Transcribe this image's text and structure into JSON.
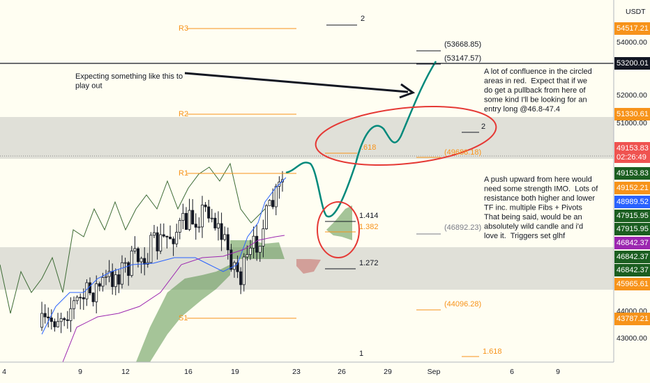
{
  "price_axis": {
    "currency": "USDT",
    "ticks": [
      "54000.00",
      "52000.00",
      "51000.00",
      "44000.00",
      "43000.00"
    ],
    "labels": [
      {
        "text": "54517.21",
        "color": "#f7931a"
      },
      {
        "text": "53200.01",
        "color": "#131722"
      },
      {
        "text": "51330.61",
        "color": "#f7931a"
      },
      {
        "text": "49153.83",
        "color": "#ef5350"
      },
      {
        "text": "49153.83",
        "color": "#1b5e20"
      },
      {
        "text": "49152.21",
        "color": "#f7931a"
      },
      {
        "text": "48989.52",
        "color": "#2962ff"
      },
      {
        "text": "47915.95",
        "color": "#1b5e20"
      },
      {
        "text": "47915.95",
        "color": "#1b5e20"
      },
      {
        "text": "46842.37",
        "color": "#9c27b0"
      },
      {
        "text": "46842.37",
        "color": "#1b5e20"
      },
      {
        "text": "46842.37",
        "color": "#1b5e20"
      },
      {
        "text": "45965.61",
        "color": "#f7931a"
      },
      {
        "text": "43787.21",
        "color": "#f7931a"
      }
    ],
    "countdown": "02:26:49"
  },
  "time_axis": [
    "4",
    "9",
    "12",
    "16",
    "19",
    "23",
    "26",
    "29",
    "Sep",
    "6",
    "9"
  ],
  "pivots": [
    "R3",
    "R2",
    "R1",
    "S1"
  ],
  "fib_labels": [
    {
      "text": "2",
      "color": "#131722"
    },
    {
      "text": "(53668.85)",
      "color": "#131722"
    },
    {
      "text": "(53147.57)",
      "color": "#131722"
    },
    {
      "text": ".618",
      "color": "#f7931a"
    },
    {
      "text": "(49688.18)",
      "color": "#f7931a"
    },
    {
      "text": "2",
      "color": "#131722"
    },
    {
      "text": "1.414",
      "color": "#131722"
    },
    {
      "text": "1.382",
      "color": "#f7931a"
    },
    {
      "text": "(46892.23)",
      "color": "#787b86"
    },
    {
      "text": "1.272",
      "color": "#131722"
    },
    {
      "text": "(44096.28)",
      "color": "#f7931a"
    },
    {
      "text": "1",
      "color": "#131722"
    },
    {
      "text": "1.618",
      "color": "#f7931a"
    }
  ],
  "notes": [
    [
      "Expecting something like this to",
      "play out"
    ],
    [
      "A lot of confluence in the circled",
      "areas in red.  Expect that if we",
      "do get a pullback from here of",
      "some kind I'll be looking for an",
      "entry long @46.8-47.4"
    ],
    [
      "A push upward from here would",
      "need some strength IMO.  Lots of",
      "resistance both higher and lower",
      "TF inc. multiple Fibs + Pivots",
      "That being said, would be an",
      "absolutely wild candle and i'd",
      "love it.  Triggers set glhf"
    ]
  ]
}
